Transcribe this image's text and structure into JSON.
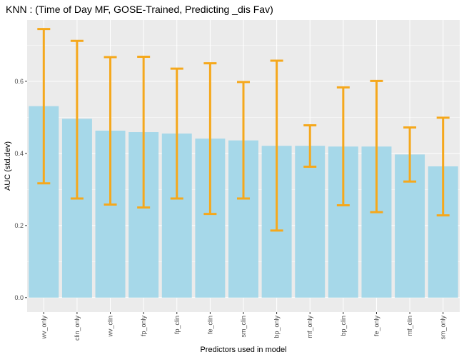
{
  "chart_data": {
    "type": "bar",
    "title": "KNN : (Time of Day MF, GOSE-Trained, Predicting _dis Fav)",
    "xlabel": "Predictors used in model",
    "ylabel": "AUC (std.dev)",
    "categories": [
      "wv_only",
      "clin_only",
      "wv_clin",
      "fp_only",
      "fp_clin",
      "fe_clin",
      "sm_clin",
      "bp_only",
      "mf_only",
      "bp_clin",
      "fe_only",
      "mf_clin",
      "sm_only"
    ],
    "values": [
      0.531,
      0.496,
      0.463,
      0.459,
      0.455,
      0.441,
      0.436,
      0.421,
      0.421,
      0.419,
      0.419,
      0.397,
      0.364
    ],
    "error_low": [
      0.317,
      0.275,
      0.258,
      0.25,
      0.275,
      0.232,
      0.275,
      0.186,
      0.363,
      0.256,
      0.237,
      0.322,
      0.228
    ],
    "error_high": [
      0.745,
      0.712,
      0.667,
      0.668,
      0.635,
      0.65,
      0.598,
      0.657,
      0.478,
      0.583,
      0.601,
      0.472,
      0.499
    ],
    "yticks": [
      "0.0",
      "0.2",
      "0.4",
      "0.6"
    ],
    "ylim": [
      -0.04,
      0.77
    ],
    "grid": true,
    "colors": {
      "bar": "#a6d8e9",
      "errorbar": "#f5a81c",
      "panel": "#ebebeb",
      "grid": "#ffffff"
    }
  }
}
